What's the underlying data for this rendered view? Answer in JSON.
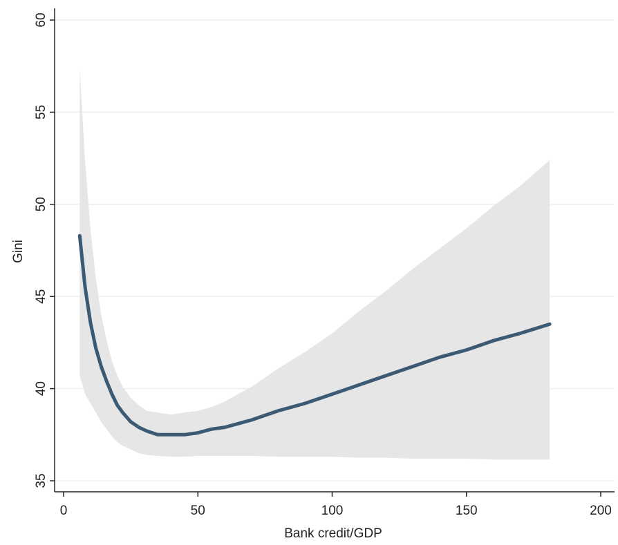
{
  "chart_data": {
    "type": "line",
    "title": "",
    "xlabel": "Bank credit/GDP",
    "ylabel": "Gini",
    "xlim": [
      0,
      200
    ],
    "ylim": [
      35,
      60
    ],
    "x_ticks": [
      0,
      50,
      100,
      150,
      200
    ],
    "x_tick_labels": [
      "0",
      "50",
      "100",
      "150",
      "200"
    ],
    "y_ticks": [
      35,
      40,
      45,
      50,
      55,
      60
    ],
    "y_tick_labels": [
      "35",
      "40",
      "45",
      "50",
      "55",
      "60"
    ],
    "grid": "horizontal",
    "legend": "none",
    "colors": {
      "line": "#3c5a73",
      "band": "#e6e6e6",
      "grid": "#ececec",
      "axis": "#222222"
    },
    "series": [
      {
        "kind": "fitted-line",
        "x": [
          6,
          8,
          10,
          12,
          14,
          16,
          18,
          20,
          22,
          25,
          28,
          31,
          35,
          40,
          45,
          50,
          55,
          60,
          65,
          70,
          80,
          90,
          100,
          110,
          120,
          130,
          140,
          150,
          160,
          170,
          181
        ],
        "y": [
          48.3,
          45.5,
          43.6,
          42.2,
          41.2,
          40.4,
          39.7,
          39.1,
          38.7,
          38.2,
          37.9,
          37.7,
          37.5,
          37.5,
          37.5,
          37.6,
          37.8,
          37.9,
          38.1,
          38.3,
          38.8,
          39.2,
          39.7,
          40.2,
          40.7,
          41.2,
          41.7,
          42.1,
          42.6,
          43.0,
          43.5
        ]
      },
      {
        "kind": "confidence-band",
        "x": [
          6,
          8,
          10,
          12,
          14,
          16,
          18,
          20,
          22,
          25,
          28,
          31,
          35,
          40,
          45,
          50,
          55,
          60,
          65,
          70,
          80,
          90,
          100,
          110,
          120,
          130,
          140,
          150,
          160,
          170,
          181
        ],
        "lower": [
          40.7,
          39.7,
          39.2,
          38.7,
          38.2,
          37.8,
          37.4,
          37.1,
          36.9,
          36.7,
          36.5,
          36.4,
          36.35,
          36.3,
          36.3,
          36.35,
          36.35,
          36.35,
          36.35,
          36.35,
          36.3,
          36.3,
          36.3,
          36.25,
          36.25,
          36.2,
          36.2,
          36.2,
          36.15,
          36.15,
          36.15
        ],
        "upper": [
          57.4,
          52.3,
          48.7,
          46.0,
          44.0,
          42.6,
          41.5,
          40.7,
          40.1,
          39.5,
          39.1,
          38.8,
          38.7,
          38.6,
          38.7,
          38.8,
          39.0,
          39.3,
          39.7,
          40.1,
          41.1,
          42.0,
          43.0,
          44.2,
          45.3,
          46.5,
          47.6,
          48.7,
          49.9,
          51.0,
          52.4
        ]
      }
    ]
  }
}
